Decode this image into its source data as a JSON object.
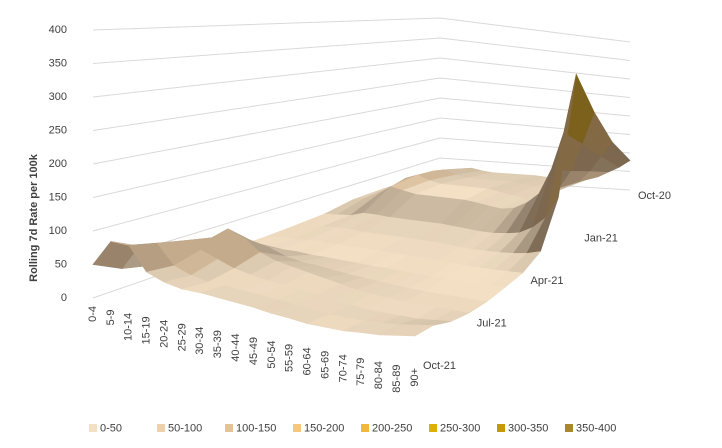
{
  "chart_data": {
    "type": "surface",
    "y_label": "Rolling 7d Rate per 100k",
    "categories": [
      "0-4",
      "5-9",
      "10-14",
      "15-19",
      "20-24",
      "25-29",
      "30-34",
      "35-39",
      "40-44",
      "45-49",
      "50-54",
      "55-59",
      "60-64",
      "65-69",
      "70-74",
      "75-79",
      "80-84",
      "85-89",
      "90+"
    ],
    "dates": [
      "Oct-20",
      null,
      null,
      "Jan-21",
      null,
      null,
      "Apr-21",
      null,
      null,
      "Jul-21",
      null,
      null,
      "Oct-21"
    ],
    "values": [
      [
        8,
        10,
        25,
        30,
        25,
        22,
        22,
        22,
        22,
        22,
        20,
        18,
        16,
        18,
        22,
        30,
        45,
        60,
        80
      ],
      [
        15,
        20,
        45,
        50,
        40,
        35,
        35,
        35,
        35,
        35,
        32,
        28,
        25,
        28,
        35,
        50,
        80,
        120,
        160
      ],
      [
        20,
        30,
        50,
        60,
        50,
        45,
        45,
        45,
        45,
        45,
        40,
        35,
        32,
        35,
        45,
        65,
        110,
        180,
        260
      ],
      [
        18,
        25,
        35,
        55,
        50,
        45,
        45,
        45,
        45,
        45,
        42,
        38,
        35,
        40,
        55,
        80,
        140,
        230,
        370
      ],
      [
        8,
        10,
        12,
        20,
        20,
        18,
        18,
        18,
        18,
        18,
        16,
        14,
        12,
        12,
        15,
        20,
        35,
        60,
        110
      ],
      [
        5,
        8,
        10,
        12,
        12,
        10,
        10,
        10,
        10,
        10,
        9,
        8,
        6,
        5,
        5,
        6,
        8,
        12,
        20
      ],
      [
        3,
        5,
        6,
        8,
        8,
        7,
        7,
        7,
        7,
        6,
        6,
        5,
        4,
        3,
        2,
        2,
        2,
        3,
        4
      ],
      [
        3,
        5,
        8,
        10,
        10,
        8,
        8,
        7,
        6,
        5,
        5,
        4,
        3,
        2,
        2,
        2,
        2,
        2,
        3
      ],
      [
        8,
        12,
        30,
        40,
        35,
        25,
        20,
        18,
        15,
        12,
        10,
        8,
        6,
        4,
        3,
        3,
        3,
        3,
        3
      ],
      [
        15,
        25,
        60,
        80,
        70,
        50,
        40,
        35,
        30,
        25,
        20,
        15,
        12,
        10,
        8,
        8,
        8,
        8,
        8
      ],
      [
        20,
        40,
        70,
        60,
        50,
        40,
        35,
        30,
        28,
        25,
        22,
        18,
        15,
        12,
        12,
        12,
        12,
        15,
        18
      ],
      [
        30,
        70,
        80,
        50,
        40,
        35,
        35,
        32,
        30,
        28,
        25,
        22,
        20,
        20,
        20,
        22,
        25,
        30,
        35
      ],
      [
        50,
        90,
        90,
        55,
        45,
        40,
        40,
        38,
        36,
        34,
        30,
        28,
        25,
        25,
        25,
        28,
        30,
        35,
        40
      ]
    ],
    "zlim": [
      0,
      400
    ],
    "zticks": [
      0,
      50,
      100,
      150,
      200,
      250,
      300,
      350,
      400
    ],
    "grid": true,
    "bands": [
      {
        "name": "0-50",
        "color": "#f3e0c5"
      },
      {
        "name": "50-100",
        "color": "#ecd1ad"
      },
      {
        "name": "100-150",
        "color": "#e4c396"
      },
      {
        "name": "150-200",
        "color": "#f3c97c"
      },
      {
        "name": "200-250",
        "color": "#efba3c"
      },
      {
        "name": "250-300",
        "color": "#deaf05"
      },
      {
        "name": "300-350",
        "color": "#c59a08"
      },
      {
        "name": "350-400",
        "color": "#a88a2c"
      }
    ]
  }
}
